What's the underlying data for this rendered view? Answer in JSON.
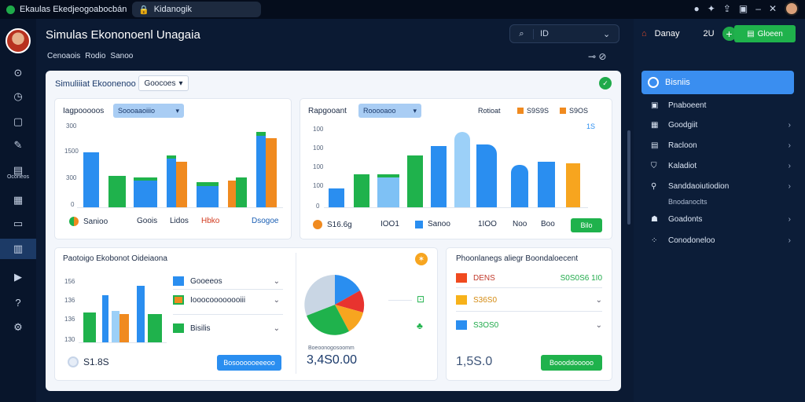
{
  "window": {
    "tab1": "Ekaulas Ekedjeogoabocbán",
    "tab2": "Kidanogik"
  },
  "header": {
    "title": "Simulas Ekononoenl Unagaia",
    "menu": [
      "Cenoaois",
      "Rodio",
      "Sanoo"
    ],
    "search_value": "ID"
  },
  "rail": {
    "label": "Oconeos"
  },
  "right_panel": {
    "top_label": "Danay",
    "top_count": "2U",
    "button": "Gloeen",
    "selected": "Bisniis",
    "items": [
      {
        "label": "Pnaboeent",
        "chev": false
      },
      {
        "label": "Goodgiit",
        "chev": true
      },
      {
        "label": "Racloon",
        "chev": true
      },
      {
        "label": "Kaladiot",
        "chev": true
      },
      {
        "label": "Sanddaoiutiodion",
        "chev": true
      },
      {
        "label": "Goadonts",
        "chev": true
      },
      {
        "label": "Conodoneloo",
        "chev": true
      }
    ],
    "sub_label": "Bnodanoclts"
  },
  "main": {
    "title": "Simuliiiat Ekoonenoo",
    "dropdown": "Goocoes"
  },
  "card1": {
    "title": "Iagpooooos",
    "dropdown": "Soooaaoiiio",
    "footer_left": "Sanioo",
    "footer_items": [
      "Goois",
      "Lidos",
      "Hbko"
    ],
    "footer_right": "Dsogoe",
    "colors": {
      "blue": "#2a8ef0",
      "green": "#1fb24c",
      "orange": "#f08a1f"
    }
  },
  "card2": {
    "title": "Rapgooant",
    "dropdown": "Rooooaoo",
    "legend": [
      "Rotioat",
      "S9S9S",
      "S9OS"
    ],
    "legend_sub": "1S",
    "footer_value": "S16.6g",
    "footer_items": [
      "IOO1",
      "Sanoo",
      "1IOO",
      "Noo",
      "Boo"
    ],
    "button": "Bilo"
  },
  "card3": {
    "title": "Paotoigo Ekobonot Oideiaona",
    "legend": [
      "Gooeeos",
      "Iooocoooooooiii",
      "Bisilis"
    ],
    "footer_value": "S1.8S",
    "button": "Bosoooooeeeoo",
    "pie_caption": "Boeoonogosoomm",
    "pie_value": "3,4S0.00"
  },
  "card4": {
    "title": "Phoonlanegs aliegr Boondaloecent",
    "rows": [
      {
        "label": "DENS",
        "value": "S0S0S6 1I0",
        "color": "#f04a1f"
      },
      {
        "label": "S36S0",
        "value": "",
        "color": "#f7b21a"
      },
      {
        "label": "S3OS0",
        "value": "",
        "color": "#2a8ef0"
      }
    ],
    "footer_value": "1,5S.0",
    "button": "Boooddooooo"
  }
}
